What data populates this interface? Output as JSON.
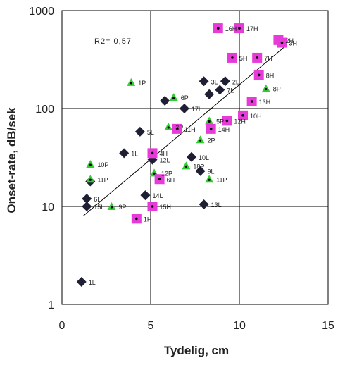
{
  "chart_data": {
    "type": "scatter",
    "title": "",
    "xlabel": "Tydelig, cm",
    "ylabel": "Onset-rate, dB/sek",
    "xlim": [
      0,
      15
    ],
    "ylim": [
      1,
      1000
    ],
    "y_scale": "log",
    "grid": true,
    "x_ticks": [
      0,
      5,
      10,
      15
    ],
    "y_ticks": [
      1,
      10,
      100,
      1000
    ],
    "y_tick_labels": [
      "1",
      "10",
      "100",
      "1000"
    ],
    "x_tick_labels": [
      "0",
      "5",
      "10",
      "15"
    ],
    "annotation": "R2= 0,57",
    "trendline": {
      "x": [
        1.2,
        12.5
      ],
      "y": [
        8,
        420
      ]
    },
    "series": [
      {
        "marker": "diamond",
        "color": "#1f1f33",
        "points": [
          {
            "x": 1.1,
            "y": 1.7,
            "label": "1L"
          },
          {
            "x": 1.4,
            "y": 10,
            "label": "15L"
          },
          {
            "x": 1.4,
            "y": 12,
            "label": "6L"
          },
          {
            "x": 3.5,
            "y": 35,
            "label": "1L"
          },
          {
            "x": 4.4,
            "y": 58,
            "label": "5L"
          },
          {
            "x": 4.7,
            "y": 13,
            "label": "14L"
          },
          {
            "x": 5.1,
            "y": 30,
            "label": "12L"
          },
          {
            "x": 5.8,
            "y": 120,
            "label": ""
          },
          {
            "x": 6.9,
            "y": 100,
            "label": "17L"
          },
          {
            "x": 7.3,
            "y": 32,
            "label": "10L"
          },
          {
            "x": 7.8,
            "y": 23,
            "label": "9L"
          },
          {
            "x": 8.0,
            "y": 190,
            "label": "3L"
          },
          {
            "x": 8.3,
            "y": 140,
            "label": ""
          },
          {
            "x": 8.9,
            "y": 155,
            "label": "7L"
          },
          {
            "x": 9.2,
            "y": 190,
            "label": "2L"
          },
          {
            "x": 8.0,
            "y": 10.5,
            "label": "13L"
          },
          {
            "x": 1.6,
            "y": 18,
            "label": ""
          }
        ]
      },
      {
        "marker": "triangle",
        "color": "#33cc33",
        "points": [
          {
            "x": 3.9,
            "y": 185,
            "label": "1P"
          },
          {
            "x": 6.3,
            "y": 130,
            "label": "6P"
          },
          {
            "x": 6.0,
            "y": 65,
            "label": "3P"
          },
          {
            "x": 7.8,
            "y": 48,
            "label": "2P"
          },
          {
            "x": 8.3,
            "y": 75,
            "label": "5P"
          },
          {
            "x": 11.5,
            "y": 160,
            "label": "8P"
          },
          {
            "x": 1.6,
            "y": 27,
            "label": "10P"
          },
          {
            "x": 1.6,
            "y": 19,
            "label": "11P"
          },
          {
            "x": 5.2,
            "y": 22,
            "label": "12P"
          },
          {
            "x": 7.0,
            "y": 26,
            "label": "18P"
          },
          {
            "x": 8.3,
            "y": 19,
            "label": "11P"
          },
          {
            "x": 2.8,
            "y": 10,
            "label": "9P"
          }
        ]
      },
      {
        "marker": "square",
        "color": "#e63bd9",
        "points": [
          {
            "x": 8.8,
            "y": 660,
            "label": "16H"
          },
          {
            "x": 10.0,
            "y": 660,
            "label": "17H"
          },
          {
            "x": 9.6,
            "y": 330,
            "label": "5H"
          },
          {
            "x": 11.0,
            "y": 330,
            "label": "7H"
          },
          {
            "x": 12.2,
            "y": 500,
            "label": "2H"
          },
          {
            "x": 12.4,
            "y": 470,
            "label": "3H"
          },
          {
            "x": 11.1,
            "y": 220,
            "label": "8H"
          },
          {
            "x": 10.7,
            "y": 118,
            "label": "13H"
          },
          {
            "x": 10.2,
            "y": 85,
            "label": "10H"
          },
          {
            "x": 9.3,
            "y": 75,
            "label": "12H"
          },
          {
            "x": 8.4,
            "y": 62,
            "label": "14H"
          },
          {
            "x": 6.5,
            "y": 62,
            "label": "11H"
          },
          {
            "x": 5.1,
            "y": 35,
            "label": "4H"
          },
          {
            "x": 5.5,
            "y": 19,
            "label": "6H"
          },
          {
            "x": 5.1,
            "y": 10,
            "label": "15H"
          },
          {
            "x": 4.2,
            "y": 7.5,
            "label": "1H"
          }
        ]
      }
    ]
  }
}
